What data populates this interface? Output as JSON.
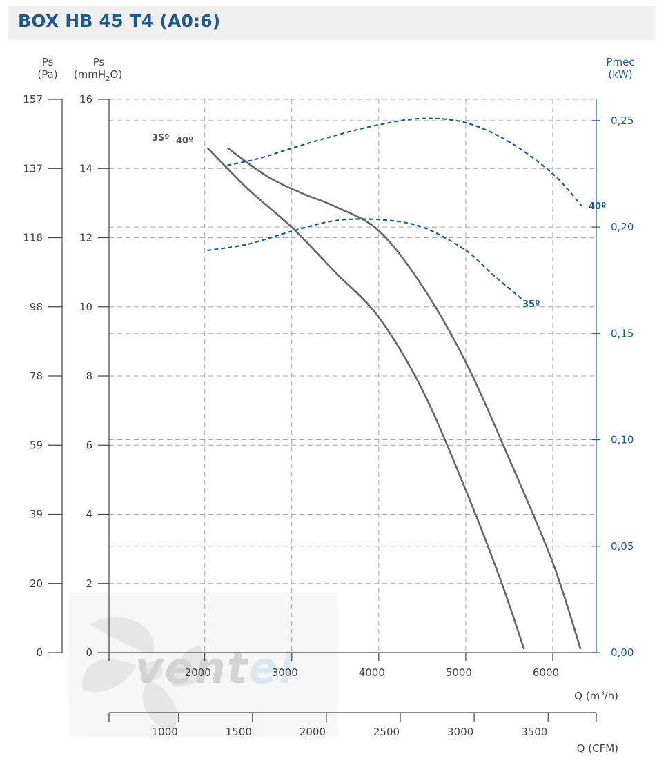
{
  "header": {
    "title": "BOX HB 45 T4 (A0:6)"
  },
  "colors": {
    "title": "#1f5a8c",
    "pressure_curve": "#666666",
    "power_curve": "#1f5a8c",
    "grid": "#a8a8a8",
    "axis": "#444444",
    "watermark_blue": "#d6e6f3"
  },
  "watermark": "ventel",
  "chart_data": {
    "type": "line",
    "title": "BOX HB 45 T4 (A0:6)",
    "axes": {
      "ps_pa": {
        "label_line1": "Ps",
        "label_line2": "(Pa)",
        "ticks": [
          "157",
          "137",
          "118",
          "98",
          "78",
          "59",
          "39",
          "20",
          "0"
        ]
      },
      "ps_mm": {
        "label_line1": "Ps",
        "label_line2a": "(mmH",
        "label_sub": "2",
        "label_line2b": "O)",
        "range": [
          0,
          16
        ],
        "ticks": [
          "16",
          "14",
          "12",
          "10",
          "8",
          "6",
          "4",
          "2",
          "0"
        ]
      },
      "pmec": {
        "label_line1": "Pmec",
        "label_line2": "(kW)",
        "range": [
          0,
          0.26
        ],
        "ticks": [
          "0,25",
          "0,20",
          "0,15",
          "0,10",
          "0,05",
          "0,00"
        ]
      },
      "q_m3h": {
        "label_a": "Q (m",
        "label_sup": "3",
        "label_b": "/h)",
        "range": [
          900,
          6500
        ],
        "ticks": [
          "2000",
          "3000",
          "4000",
          "5000",
          "6000"
        ]
      },
      "q_cfm": {
        "label": "Q (CFM)",
        "ticks": [
          "1000",
          "1500",
          "2000",
          "2500",
          "3000",
          "3500"
        ]
      }
    },
    "grid": true,
    "series": [
      {
        "name": "35º",
        "kind": "pressure",
        "unit": "mmH2O",
        "x": [
          2030,
          2500,
          3000,
          3500,
          4000,
          4500,
          5000,
          5400,
          5670
        ],
        "y": [
          14.6,
          13.4,
          12.3,
          11.0,
          9.7,
          7.6,
          4.7,
          2.1,
          0.1
        ]
      },
      {
        "name": "40º",
        "kind": "pressure",
        "unit": "mmH2O",
        "x": [
          2260,
          2700,
          3100,
          3500,
          4000,
          4500,
          5000,
          5500,
          6000,
          6320
        ],
        "y": [
          14.6,
          13.8,
          13.3,
          12.9,
          12.2,
          10.6,
          8.4,
          5.6,
          2.6,
          0.1
        ]
      },
      {
        "name": "35º",
        "kind": "power",
        "unit": "kW",
        "x": [
          2030,
          2500,
          3000,
          3500,
          4000,
          4500,
          5000,
          5300,
          5650
        ],
        "y": [
          0.189,
          0.192,
          0.198,
          0.203,
          0.2035,
          0.2,
          0.189,
          0.178,
          0.166
        ]
      },
      {
        "name": "40º",
        "kind": "power",
        "unit": "kW",
        "x": [
          2260,
          2600,
          3000,
          3500,
          4000,
          4500,
          5000,
          5500,
          6000,
          6330
        ],
        "y": [
          0.229,
          0.232,
          0.237,
          0.243,
          0.248,
          0.251,
          0.249,
          0.24,
          0.225,
          0.21
        ]
      }
    ],
    "labels": {
      "pressure_35": "35º",
      "pressure_40": "40º",
      "power_35": "35º",
      "power_40": "40º"
    }
  }
}
